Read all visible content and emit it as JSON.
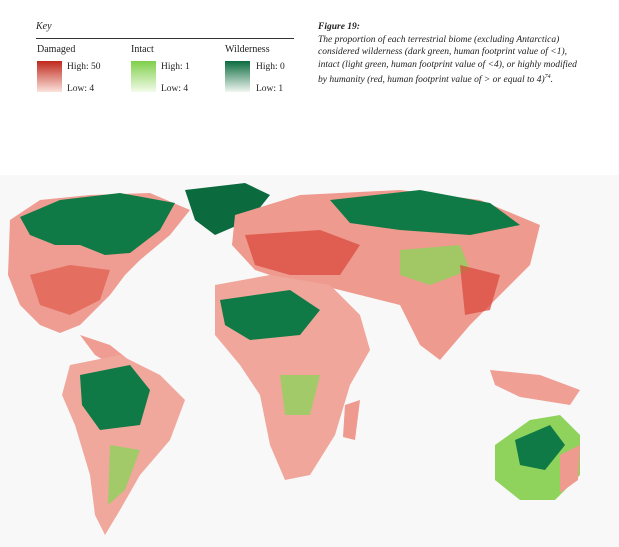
{
  "key": {
    "title": "Key",
    "legend": [
      {
        "label": "Damaged",
        "high": "High: 50",
        "low": "Low: 4"
      },
      {
        "label": "Intact",
        "high": "High: 1",
        "low": "Low: 4"
      },
      {
        "label": "Wilderness",
        "high": "High: 0",
        "low": "Low: 1"
      }
    ]
  },
  "figure": {
    "label": "Figure 19:",
    "caption": "The proportion of each terrestrial biome (excluding Antarctica) considered wilderness (dark green, human footprint value of <1), intact (light green, human footprint value of <4), or highly modified by humanity (red, human footprint value of > or equal to 4)",
    "footnote": "74"
  }
}
